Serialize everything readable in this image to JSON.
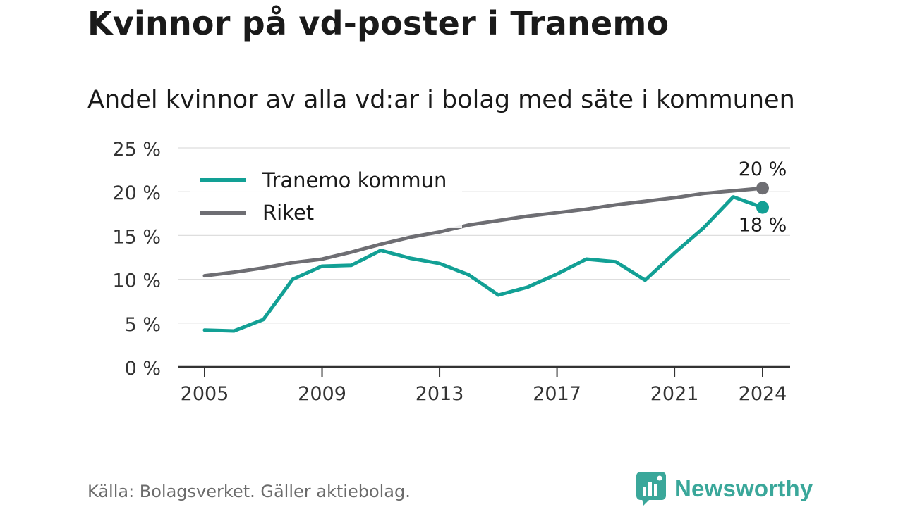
{
  "title": "Kvinnor på vd-poster i Tranemo",
  "subtitle": "Andel kvinnor av alla vd:ar i bolag med säte i kommunen",
  "source": "Källa: Bolagsverket. Gäller aktiebolag.",
  "brand": {
    "name": "Newsworthy",
    "icon": "chart-bubble-icon"
  },
  "colors": {
    "tranemo": "#12a095",
    "riket": "#6e6e73",
    "grid": "#dedede",
    "axis": "#333333"
  },
  "chart_data": {
    "type": "line",
    "x": [
      2005,
      2006,
      2007,
      2008,
      2009,
      2010,
      2011,
      2012,
      2013,
      2014,
      2015,
      2016,
      2017,
      2018,
      2019,
      2020,
      2021,
      2022,
      2023,
      2024
    ],
    "series": [
      {
        "name": "Tranemo kommun",
        "values": [
          4.2,
          4.1,
          5.4,
          10.0,
          11.5,
          11.6,
          13.3,
          12.4,
          11.8,
          10.5,
          8.2,
          9.1,
          10.6,
          12.3,
          12.0,
          9.9,
          13.0,
          15.9,
          19.4,
          18.2
        ],
        "end_label": "18 %"
      },
      {
        "name": "Riket",
        "values": [
          10.4,
          10.8,
          11.3,
          11.9,
          12.3,
          13.1,
          14.0,
          14.8,
          15.4,
          16.2,
          16.7,
          17.2,
          17.6,
          18.0,
          18.5,
          18.9,
          19.3,
          19.8,
          20.1,
          20.4
        ],
        "end_label": "20 %"
      }
    ],
    "y_ticks": [
      "0 %",
      "5 %",
      "10 %",
      "15 %",
      "20 %",
      "25 %"
    ],
    "y_tick_values": [
      0,
      5,
      10,
      15,
      20,
      25
    ],
    "x_ticks": [
      2005,
      2009,
      2013,
      2017,
      2021,
      2024
    ],
    "x_tick_labels": [
      "2005",
      "2009",
      "2013",
      "2017",
      "2021",
      "2024"
    ],
    "ylim": [
      0,
      25
    ],
    "xlim": [
      2005,
      2024
    ],
    "grid": true,
    "legend": "top-left"
  }
}
